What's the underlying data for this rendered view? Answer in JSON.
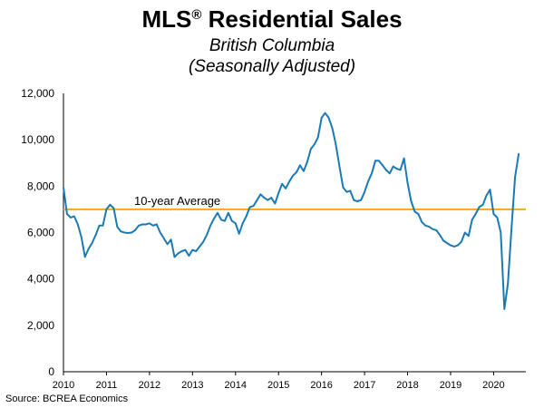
{
  "title": {
    "main": "MLS",
    "mark": "®",
    "rest": " Residential Sales",
    "subtitle1": "British Columbia",
    "subtitle2": "(Seasonally Adjusted)"
  },
  "source": "Source: BCREA Economics",
  "colors": {
    "series": "#1a7ab5",
    "average": "#f5a623",
    "axis": "#000000"
  },
  "chart_data": {
    "type": "line",
    "title": "MLS® Residential Sales",
    "subtitle": "British Columbia (Seasonally Adjusted)",
    "xlabel": "",
    "ylabel": "",
    "ylim": [
      0,
      12000
    ],
    "xlim": [
      2010,
      2020.75
    ],
    "y_ticks": [
      "0",
      "2,000",
      "4,000",
      "6,000",
      "8,000",
      "10,000",
      "12,000"
    ],
    "x_ticks": [
      "2010",
      "2011",
      "2012",
      "2013",
      "2014",
      "2015",
      "2016",
      "2017",
      "2018",
      "2019",
      "2020"
    ],
    "grid": false,
    "reference_line": {
      "label": "10-year Average",
      "value": 7000
    },
    "series": [
      {
        "x": [
          2010,
          2010.083,
          2010.167,
          2010.25,
          2010.333,
          2010.417,
          2010.5,
          2010.583,
          2010.667,
          2010.75,
          2010.833,
          2010.917,
          2011,
          2011.083,
          2011.167,
          2011.25,
          2011.333,
          2011.417,
          2011.5,
          2011.583,
          2011.667,
          2011.75,
          2011.833,
          2011.917,
          2012,
          2012.083,
          2012.167,
          2012.25,
          2012.333,
          2012.417,
          2012.5,
          2012.583,
          2012.667,
          2012.75,
          2012.833,
          2012.917,
          2013,
          2013.083,
          2013.167,
          2013.25,
          2013.333,
          2013.417,
          2013.5,
          2013.583,
          2013.667,
          2013.75,
          2013.833,
          2013.917,
          2014,
          2014.083,
          2014.167,
          2014.25,
          2014.333,
          2014.417,
          2014.5,
          2014.583,
          2014.667,
          2014.75,
          2014.833,
          2014.917,
          2015,
          2015.083,
          2015.167,
          2015.25,
          2015.333,
          2015.417,
          2015.5,
          2015.583,
          2015.667,
          2015.75,
          2015.833,
          2015.917,
          2016,
          2016.083,
          2016.167,
          2016.25,
          2016.333,
          2016.417,
          2016.5,
          2016.583,
          2016.667,
          2016.75,
          2016.833,
          2016.917,
          2017,
          2017.083,
          2017.167,
          2017.25,
          2017.333,
          2017.417,
          2017.5,
          2017.583,
          2017.667,
          2017.75,
          2017.833,
          2017.917,
          2018,
          2018.083,
          2018.167,
          2018.25,
          2018.333,
          2018.417,
          2018.5,
          2018.583,
          2018.667,
          2018.75,
          2018.833,
          2018.917,
          2019,
          2019.083,
          2019.167,
          2019.25,
          2019.333,
          2019.417,
          2019.5,
          2019.583,
          2019.667,
          2019.75,
          2019.833,
          2019.917,
          2020,
          2020.083,
          2020.167,
          2020.25,
          2020.333,
          2020.417,
          2020.5,
          2020.583
        ],
        "values": [
          7950,
          6800,
          6650,
          6700,
          6350,
          5800,
          4950,
          5300,
          5550,
          5900,
          6300,
          6300,
          7000,
          7200,
          7050,
          6250,
          6050,
          6000,
          5980,
          6000,
          6100,
          6300,
          6350,
          6350,
          6400,
          6300,
          6350,
          6000,
          5750,
          5500,
          5700,
          4950,
          5100,
          5200,
          5250,
          5000,
          5250,
          5200,
          5400,
          5600,
          5900,
          6300,
          6600,
          6850,
          6550,
          6500,
          6850,
          6500,
          6400,
          5950,
          6400,
          6700,
          7100,
          7150,
          7400,
          7650,
          7500,
          7400,
          7500,
          7250,
          7700,
          8100,
          7900,
          8200,
          8450,
          8600,
          8900,
          8650,
          9050,
          9600,
          9800,
          10100,
          10950,
          11150,
          10950,
          10500,
          9800,
          8850,
          7950,
          7750,
          7800,
          7400,
          7350,
          7400,
          7750,
          8200,
          8550,
          9100,
          9100,
          8900,
          8700,
          8550,
          8850,
          8750,
          8700,
          9200,
          8150,
          7350,
          6900,
          6800,
          6450,
          6300,
          6250,
          6150,
          6100,
          5900,
          5650,
          5550,
          5450,
          5400,
          5450,
          5600,
          6000,
          5850,
          6550,
          6800,
          7100,
          7200,
          7600,
          7850,
          6800,
          6650,
          6000,
          2700,
          3800,
          6200,
          8400,
          9400
        ]
      }
    ]
  }
}
